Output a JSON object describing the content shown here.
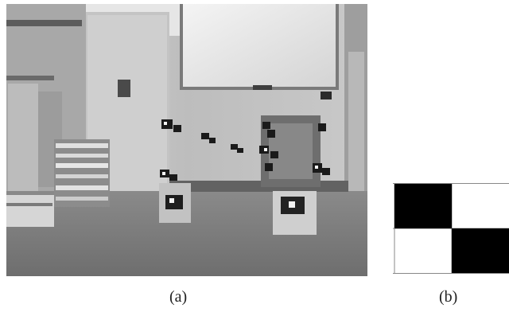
{
  "figure": {
    "panel_a": {
      "caption": "(a)",
      "description_icon": "office-scene-photo"
    },
    "panel_b": {
      "caption": "(b)",
      "description_icon": "checkerboard-pattern"
    }
  },
  "colors": {
    "background": "#ffffff",
    "pattern_dark": "#000000",
    "pattern_light": "#ffffff"
  }
}
